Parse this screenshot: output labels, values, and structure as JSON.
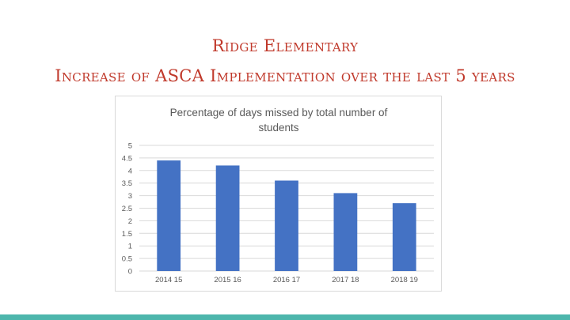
{
  "slide": {
    "title": "Ridge Elementary",
    "subtitle": "Increase of ASCA Implementation over the last 5 years"
  },
  "colors": {
    "title": "#c0392b",
    "bar": "#4472c4",
    "grid": "#d9d9d9",
    "bottom_bar": "#4db6ac"
  },
  "chart_data": {
    "type": "bar",
    "title": "Percentage of days missed by total number of students",
    "title_lines": [
      "Percentage of days missed by total number of",
      "students"
    ],
    "categories": [
      "2014 15",
      "2015 16",
      "2016 17",
      "2017 18",
      "2018 19"
    ],
    "values": [
      4.4,
      4.2,
      3.6,
      3.1,
      2.7
    ],
    "xlabel": "",
    "ylabel": "",
    "ylim": [
      0,
      5
    ],
    "yticks": [
      "0",
      "0.5",
      "1",
      "1.5",
      "2",
      "2.5",
      "3",
      "3.5",
      "4",
      "4.5",
      "5"
    ],
    "grid": true,
    "legend": "none"
  }
}
